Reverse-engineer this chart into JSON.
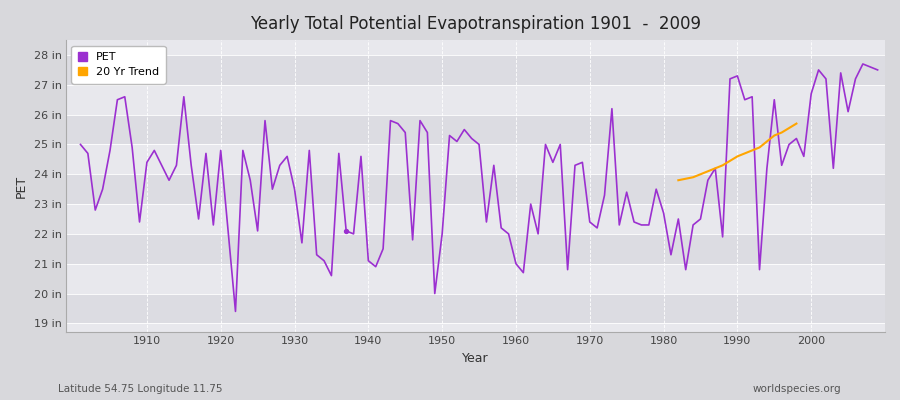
{
  "title": "Yearly Total Potential Evapotranspiration 1901  -  2009",
  "xlabel": "Year",
  "ylabel": "PET",
  "footnote_left": "Latitude 54.75 Longitude 11.75",
  "footnote_right": "worldspecies.org",
  "legend_pet": "PET",
  "legend_trend": "20 Yr Trend",
  "pet_color": "#9B30D0",
  "trend_color": "#FFA500",
  "bg_outer": "#D8D8DC",
  "plot_bg_light": "#E8E8ED",
  "plot_bg_dark": "#DCDCE2",
  "grid_color": "#FFFFFF",
  "ylim": [
    18.7,
    28.5
  ],
  "yticks": [
    19,
    20,
    21,
    22,
    23,
    24,
    25,
    26,
    27,
    28
  ],
  "xlim": [
    1899,
    2010
  ],
  "xticks": [
    1910,
    1920,
    1930,
    1940,
    1950,
    1960,
    1970,
    1980,
    1990,
    2000
  ],
  "years": [
    1901,
    1902,
    1903,
    1904,
    1905,
    1906,
    1907,
    1908,
    1909,
    1910,
    1911,
    1912,
    1913,
    1914,
    1915,
    1916,
    1917,
    1918,
    1919,
    1920,
    1921,
    1922,
    1923,
    1924,
    1925,
    1926,
    1927,
    1928,
    1929,
    1930,
    1931,
    1932,
    1933,
    1934,
    1935,
    1936,
    1937,
    1938,
    1939,
    1940,
    1941,
    1942,
    1943,
    1944,
    1945,
    1946,
    1947,
    1948,
    1949,
    1950,
    1951,
    1952,
    1953,
    1954,
    1955,
    1956,
    1957,
    1958,
    1959,
    1960,
    1961,
    1962,
    1963,
    1964,
    1965,
    1966,
    1967,
    1968,
    1969,
    1970,
    1971,
    1972,
    1973,
    1974,
    1975,
    1976,
    1977,
    1978,
    1979,
    1980,
    1981,
    1982,
    1983,
    1984,
    1985,
    1986,
    1987,
    1988,
    1989,
    1990,
    1991,
    1992,
    1993,
    1994,
    1995,
    1996,
    1997,
    1998,
    1999,
    2000,
    2001,
    2002,
    2003,
    2004,
    2005,
    2006,
    2007,
    2008,
    2009
  ],
  "pet_values": [
    25.0,
    24.7,
    22.8,
    23.5,
    24.8,
    26.5,
    26.6,
    24.9,
    22.4,
    24.4,
    24.8,
    24.3,
    23.8,
    24.3,
    26.6,
    24.3,
    22.5,
    24.7,
    22.3,
    24.8,
    22.1,
    19.4,
    24.8,
    23.8,
    22.1,
    25.8,
    23.5,
    24.3,
    24.6,
    23.5,
    21.7,
    24.8,
    21.3,
    21.1,
    20.6,
    24.7,
    22.1,
    22.0,
    24.6,
    21.1,
    20.9,
    21.5,
    25.8,
    25.7,
    25.4,
    21.8,
    25.8,
    25.4,
    20.0,
    22.0,
    25.3,
    25.1,
    25.5,
    25.2,
    25.0,
    22.4,
    24.3,
    22.2,
    22.0,
    21.0,
    20.7,
    23.0,
    22.0,
    25.0,
    24.4,
    25.0,
    20.8,
    24.3,
    24.4,
    22.4,
    22.2,
    23.3,
    26.2,
    22.3,
    23.4,
    22.4,
    22.3,
    22.3,
    23.5,
    22.7,
    21.3,
    22.5,
    20.8,
    22.3,
    22.5,
    23.8,
    24.2,
    21.9,
    27.2,
    27.3,
    26.5,
    26.6,
    20.8,
    24.2,
    26.5,
    24.3,
    25.0,
    25.2,
    24.6,
    26.7,
    27.5,
    27.2,
    24.2,
    27.4,
    26.1,
    27.2,
    27.7,
    27.6,
    27.5
  ],
  "trend_years": [
    1982,
    1983,
    1984,
    1985,
    1986,
    1987,
    1988,
    1989,
    1990,
    1991,
    1992,
    1993,
    1994,
    1995,
    1996,
    1997,
    1998
  ],
  "trend_values": [
    23.8,
    23.85,
    23.9,
    24.0,
    24.1,
    24.2,
    24.3,
    24.45,
    24.6,
    24.7,
    24.8,
    24.9,
    25.1,
    25.3,
    25.4,
    25.55,
    25.7
  ],
  "isolated_dot_year": 1937,
  "isolated_dot_value": 22.1
}
